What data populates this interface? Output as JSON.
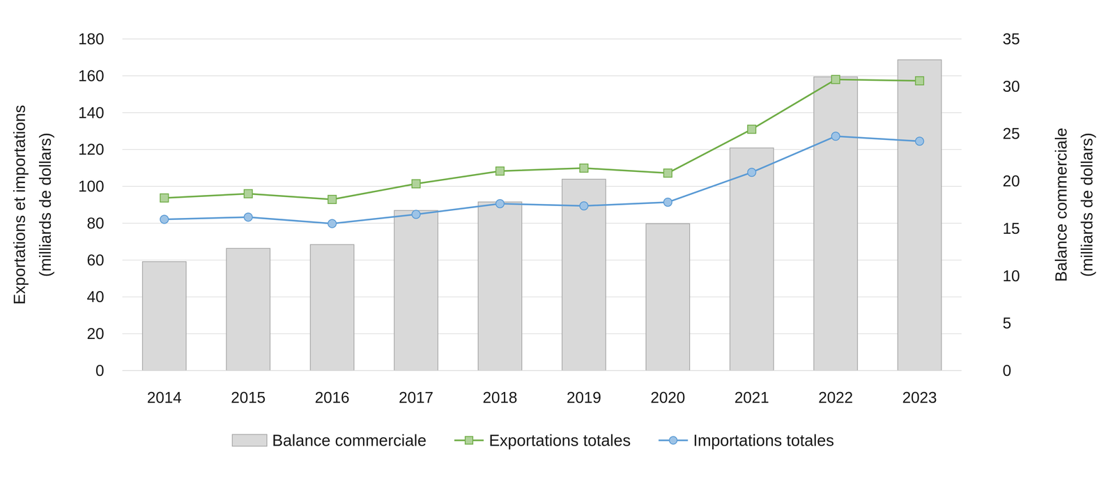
{
  "chart_data": {
    "type": "bar",
    "y_label": [
      "Exportations et importations",
      "(milliards de dollars)"
    ],
    "y2_label": [
      "Balance commerciale",
      "(milliards de dollars)"
    ],
    "categories": [
      "2014",
      "2015",
      "2016",
      "2017",
      "2018",
      "2019",
      "2020",
      "2021",
      "2022",
      "2023"
    ],
    "series": [
      {
        "name": "Balance commerciale",
        "type": "bar",
        "axis": "y2",
        "color": "#d9d9d9",
        "values": [
          11.5,
          12.9,
          13.3,
          16.9,
          17.8,
          20.2,
          15.5,
          23.5,
          31.0,
          32.8
        ]
      },
      {
        "name": "Exportations totales",
        "type": "line",
        "color": "#70ad47",
        "marker": "square",
        "values": [
          93.7,
          96.0,
          92.9,
          101.4,
          108.3,
          109.9,
          107.2,
          131.0,
          158.0,
          157.3
        ]
      },
      {
        "name": "Importations totales",
        "type": "line",
        "color": "#5b9bd5",
        "marker": "circle",
        "values": [
          82.1,
          83.3,
          79.8,
          84.8,
          90.6,
          89.4,
          91.4,
          107.6,
          127.2,
          124.5
        ]
      }
    ],
    "ylim": [
      0,
      180
    ],
    "yticks": [
      0,
      20,
      40,
      60,
      80,
      100,
      120,
      140,
      160,
      180
    ],
    "y2lim": [
      0,
      35
    ],
    "y2ticks": [
      0,
      5,
      10,
      15,
      20,
      25,
      30,
      35
    ],
    "grid": true,
    "legend": "bottom"
  }
}
